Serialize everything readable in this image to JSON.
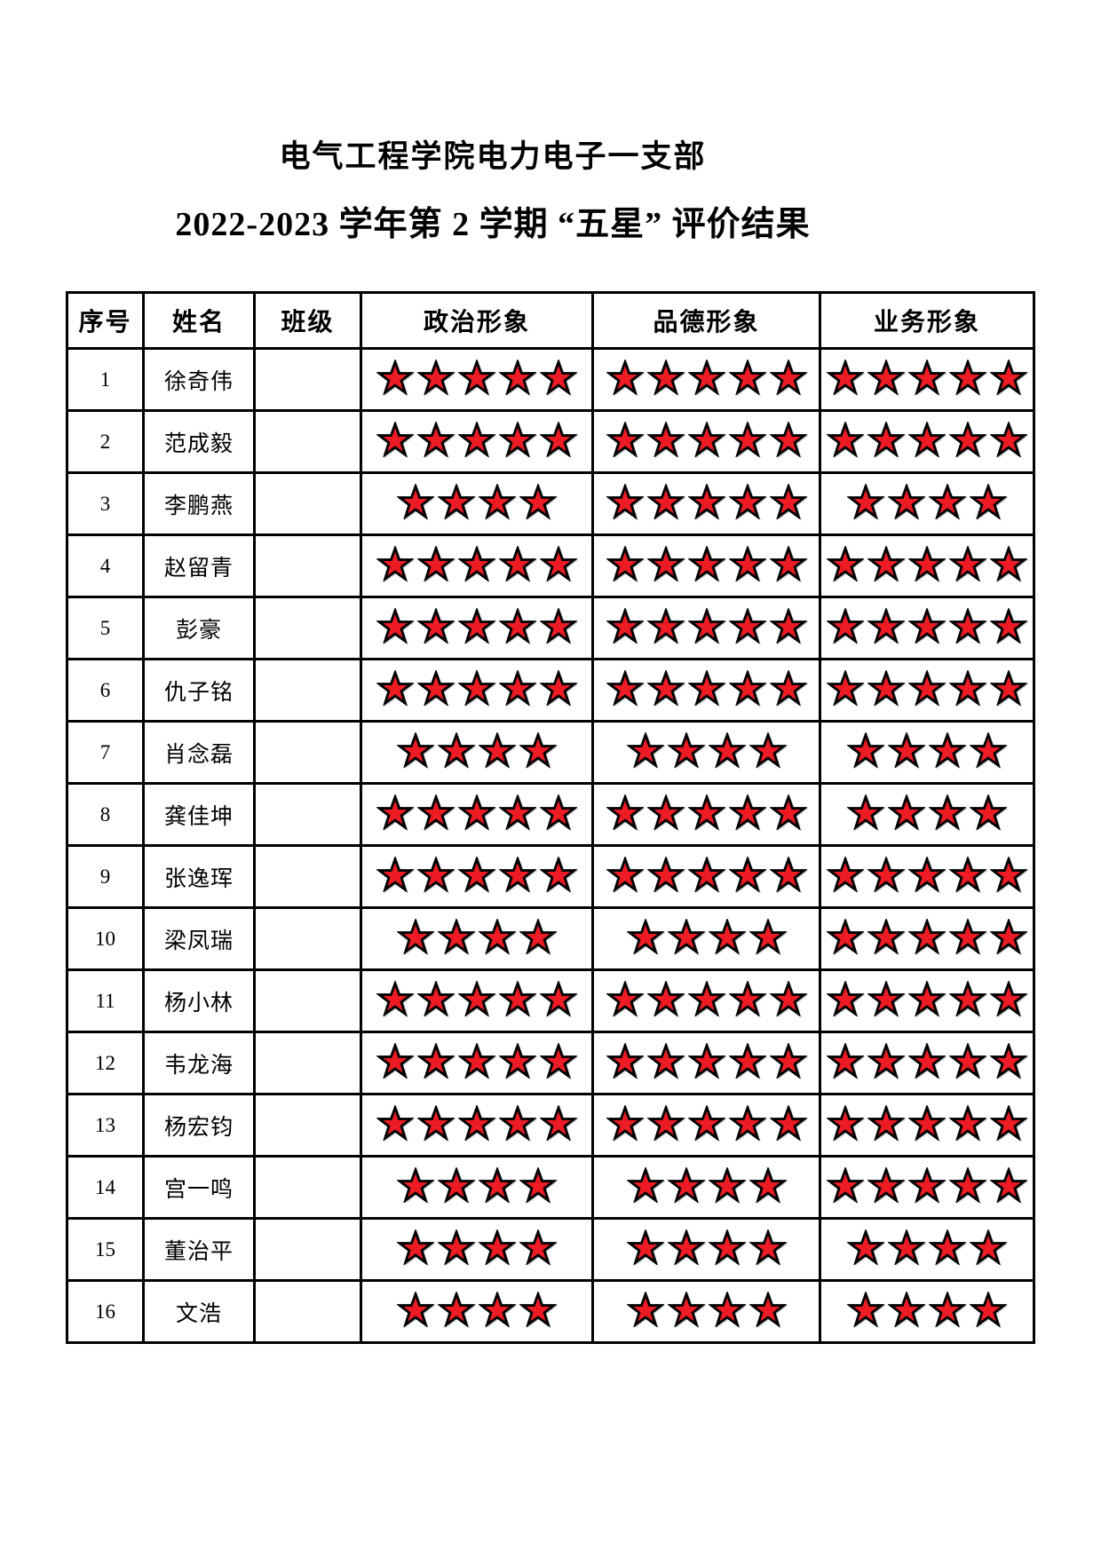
{
  "page": {
    "title_line1": "电气工程学院电力电子一支部",
    "title_line2": "2022-2023 学年第 2 学期 “五星” 评价结果"
  },
  "table": {
    "star_color": "#ed1c24",
    "star_outline": "#000000",
    "max_stars": 5,
    "headers": {
      "index": "序号",
      "name": "姓名",
      "class": "班级",
      "political": "政治形象",
      "moral": "品德形象",
      "business": "业务形象"
    },
    "rows": [
      {
        "index": "1",
        "name": "徐奇伟",
        "class": "",
        "political": 5,
        "moral": 5,
        "business": 5
      },
      {
        "index": "2",
        "name": "范成毅",
        "class": "",
        "political": 5,
        "moral": 5,
        "business": 5
      },
      {
        "index": "3",
        "name": "李鹏燕",
        "class": "",
        "political": 4,
        "moral": 5,
        "business": 4
      },
      {
        "index": "4",
        "name": "赵留青",
        "class": "",
        "political": 5,
        "moral": 5,
        "business": 5
      },
      {
        "index": "5",
        "name": "彭豪",
        "class": "",
        "political": 5,
        "moral": 5,
        "business": 5
      },
      {
        "index": "6",
        "name": "仇子铭",
        "class": "",
        "political": 5,
        "moral": 5,
        "business": 5
      },
      {
        "index": "7",
        "name": "肖念磊",
        "class": "",
        "political": 4,
        "moral": 4,
        "business": 4
      },
      {
        "index": "8",
        "name": "龚佳坤",
        "class": "",
        "political": 5,
        "moral": 5,
        "business": 4
      },
      {
        "index": "9",
        "name": "张逸珲",
        "class": "",
        "political": 5,
        "moral": 5,
        "business": 5
      },
      {
        "index": "10",
        "name": "梁凤瑞",
        "class": "",
        "political": 4,
        "moral": 4,
        "business": 5
      },
      {
        "index": "11",
        "name": "杨小林",
        "class": "",
        "political": 5,
        "moral": 5,
        "business": 5
      },
      {
        "index": "12",
        "name": "韦龙海",
        "class": "",
        "political": 5,
        "moral": 5,
        "business": 5
      },
      {
        "index": "13",
        "name": "杨宏钧",
        "class": "",
        "political": 5,
        "moral": 5,
        "business": 5
      },
      {
        "index": "14",
        "name": "宫一鸣",
        "class": "",
        "political": 4,
        "moral": 4,
        "business": 5
      },
      {
        "index": "15",
        "name": "董治平",
        "class": "",
        "political": 4,
        "moral": 4,
        "business": 4
      },
      {
        "index": "16",
        "name": "文浩",
        "class": "",
        "political": 4,
        "moral": 4,
        "business": 4
      }
    ]
  }
}
